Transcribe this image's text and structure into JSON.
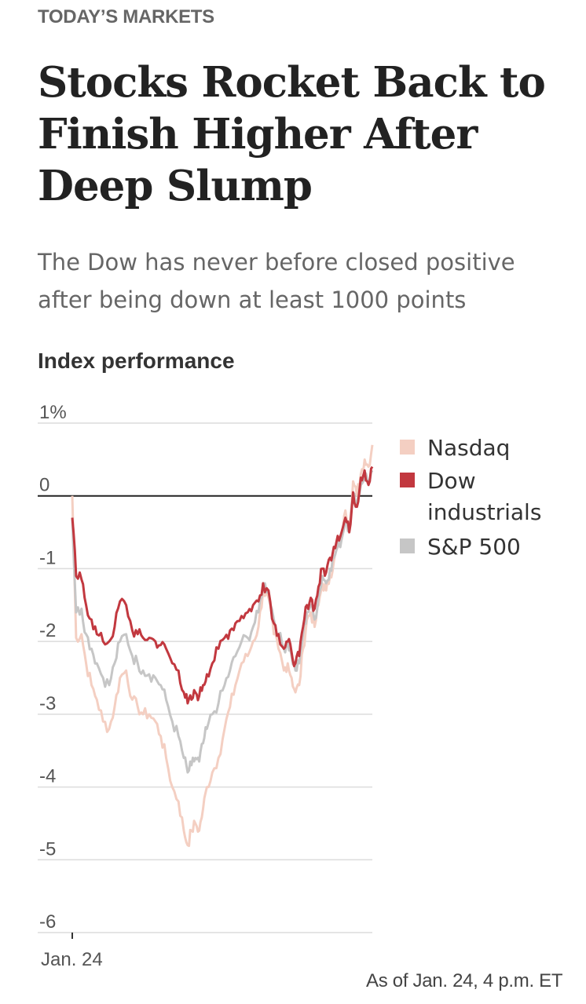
{
  "kicker": "TODAY’S MARKETS",
  "headline": "Stocks Rocket Back to Finish Higher After Deep Slump",
  "dek": "The Dow has never before closed positive after being down at least 1000 points",
  "source_note": "As of Jan. 24, 4 p.m. ET",
  "colors": {
    "nasdaq": "#f4cfc2",
    "dow": "#c2383f",
    "sp500": "#c6c6c6",
    "zero_line": "#222222",
    "grid": "#dcdcdc"
  },
  "chart_data": {
    "type": "line",
    "title": "Index performance",
    "xlabel": "",
    "ylabel": "",
    "x_tick_labels": [
      "Jan. 24"
    ],
    "y_ticks": [
      1,
      0,
      -1,
      -2,
      -3,
      -4,
      -5,
      -6
    ],
    "y_tick_labels": [
      "1%",
      "0",
      "-1",
      "-2",
      "-3",
      "-4",
      "-5",
      "-6"
    ],
    "ylim": [
      -6,
      1
    ],
    "x_range_minutes": [
      0,
      390
    ],
    "legend_position": "right",
    "series": [
      {
        "name": "Nasdaq",
        "color_key": "nasdaq",
        "x": [
          0,
          5,
          12,
          18,
          25,
          32,
          40,
          48,
          55,
          62,
          70,
          78,
          85,
          92,
          100,
          108,
          115,
          122,
          130,
          138,
          145,
          150,
          155,
          160,
          165,
          170,
          175,
          182,
          190,
          198,
          205,
          212,
          220,
          228,
          235,
          242,
          248,
          255,
          262,
          268,
          275,
          280,
          285,
          290,
          295,
          300,
          305,
          310,
          315,
          320,
          325,
          330,
          335,
          340,
          345,
          350,
          355,
          360,
          365,
          370,
          375,
          380,
          385,
          390
        ],
        "y": [
          0.0,
          -1.95,
          -1.9,
          -2.3,
          -2.6,
          -2.8,
          -3.1,
          -3.2,
          -2.9,
          -2.5,
          -2.4,
          -2.8,
          -2.9,
          -3.0,
          -3.0,
          -3.1,
          -3.3,
          -3.6,
          -4.0,
          -4.2,
          -4.6,
          -4.8,
          -4.6,
          -4.5,
          -4.6,
          -4.3,
          -4.0,
          -3.8,
          -3.6,
          -3.2,
          -2.9,
          -2.6,
          -2.3,
          -2.2,
          -2.0,
          -1.8,
          -1.3,
          -1.4,
          -1.9,
          -2.1,
          -2.4,
          -2.3,
          -2.5,
          -2.7,
          -2.6,
          -2.1,
          -1.7,
          -1.6,
          -1.8,
          -1.5,
          -1.2,
          -1.3,
          -1.1,
          -0.9,
          -0.7,
          -0.6,
          -0.2,
          -0.4,
          0.2,
          0.0,
          0.3,
          0.5,
          0.4,
          0.7
        ]
      },
      {
        "name": "S&P 500",
        "color_key": "sp500",
        "x": [
          0,
          5,
          12,
          18,
          25,
          32,
          40,
          48,
          55,
          62,
          70,
          78,
          85,
          92,
          100,
          108,
          115,
          122,
          130,
          138,
          145,
          150,
          155,
          160,
          165,
          170,
          175,
          182,
          190,
          198,
          205,
          212,
          220,
          228,
          235,
          242,
          248,
          255,
          262,
          268,
          275,
          280,
          285,
          290,
          295,
          300,
          305,
          310,
          315,
          320,
          325,
          330,
          335,
          340,
          345,
          350,
          355,
          360,
          365,
          370,
          375,
          380,
          385,
          390
        ],
        "y": [
          -0.3,
          -1.6,
          -1.55,
          -1.9,
          -2.1,
          -2.3,
          -2.5,
          -2.6,
          -2.3,
          -2.0,
          -1.9,
          -2.2,
          -2.3,
          -2.4,
          -2.45,
          -2.5,
          -2.6,
          -2.8,
          -3.1,
          -3.3,
          -3.6,
          -3.8,
          -3.7,
          -3.6,
          -3.65,
          -3.4,
          -3.2,
          -3.0,
          -2.85,
          -2.6,
          -2.4,
          -2.2,
          -2.0,
          -1.95,
          -1.8,
          -1.6,
          -1.2,
          -1.3,
          -1.7,
          -1.9,
          -2.1,
          -2.0,
          -2.2,
          -2.4,
          -2.3,
          -1.9,
          -1.6,
          -1.5,
          -1.7,
          -1.4,
          -1.1,
          -1.2,
          -1.0,
          -0.85,
          -0.7,
          -0.6,
          -0.3,
          -0.45,
          0.0,
          -0.1,
          0.15,
          0.3,
          0.2,
          0.35
        ]
      },
      {
        "name": "Dow industrials",
        "color_key": "dow",
        "x": [
          0,
          5,
          12,
          18,
          25,
          32,
          40,
          48,
          55,
          62,
          70,
          78,
          85,
          92,
          100,
          108,
          115,
          122,
          130,
          138,
          145,
          150,
          155,
          160,
          165,
          170,
          175,
          182,
          190,
          198,
          205,
          212,
          220,
          228,
          235,
          242,
          248,
          255,
          262,
          268,
          275,
          280,
          285,
          290,
          295,
          300,
          305,
          310,
          315,
          320,
          325,
          330,
          335,
          340,
          345,
          350,
          355,
          360,
          365,
          370,
          375,
          380,
          385,
          390
        ],
        "y": [
          -0.3,
          -1.1,
          -1.15,
          -1.5,
          -1.7,
          -1.9,
          -2.0,
          -2.0,
          -1.8,
          -1.45,
          -1.5,
          -1.85,
          -1.9,
          -1.95,
          -1.95,
          -2.0,
          -2.05,
          -2.1,
          -2.3,
          -2.4,
          -2.7,
          -2.85,
          -2.8,
          -2.7,
          -2.75,
          -2.6,
          -2.45,
          -2.3,
          -2.1,
          -1.95,
          -1.85,
          -1.75,
          -1.65,
          -1.6,
          -1.5,
          -1.45,
          -1.2,
          -1.3,
          -1.75,
          -1.9,
          -2.1,
          -2.0,
          -2.15,
          -2.3,
          -2.2,
          -1.8,
          -1.5,
          -1.4,
          -1.55,
          -1.25,
          -1.0,
          -1.05,
          -0.85,
          -0.7,
          -0.55,
          -0.5,
          -0.3,
          -0.5,
          0.05,
          -0.15,
          0.25,
          0.35,
          0.15,
          0.4
        ]
      }
    ],
    "legend": [
      {
        "label_lines": [
          "Nasdaq"
        ],
        "color_key": "nasdaq"
      },
      {
        "label_lines": [
          "Dow",
          "industrials"
        ],
        "color_key": "dow"
      },
      {
        "label_lines": [
          "S&P 500"
        ],
        "color_key": "sp500"
      }
    ]
  }
}
